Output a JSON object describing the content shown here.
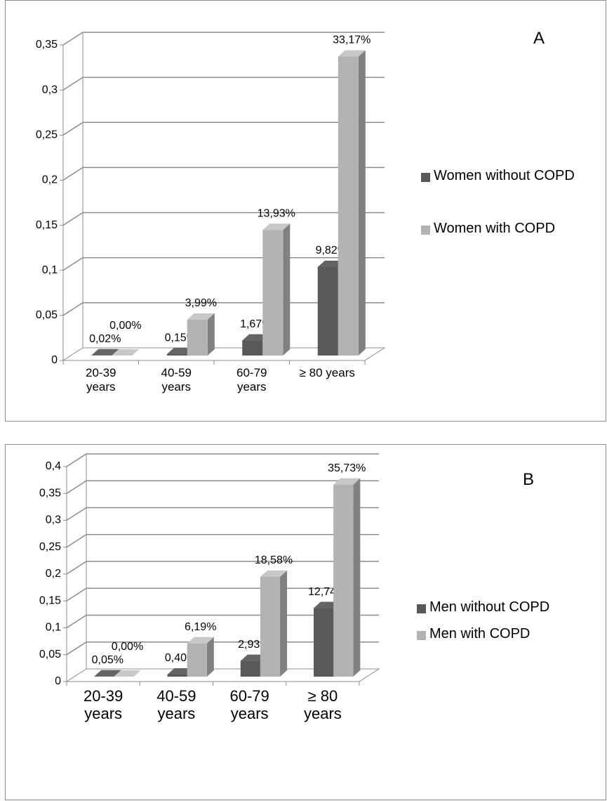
{
  "chart_data": [
    {
      "type": "bar3d",
      "annotation": "A",
      "legend_position": "right",
      "categories": [
        "20-39 years",
        "40-59 years",
        "60-79 years",
        "≥ 80 years"
      ],
      "series": [
        {
          "name": "Women without COPD",
          "color": "#595959",
          "values": [
            0.0002,
            0.0015,
            0.0167,
            0.0982
          ],
          "value_labels": [
            "0,02%",
            "0,15%",
            "1,67%",
            "9,82%"
          ]
        },
        {
          "name": "Women with COPD",
          "color": "#b3b3b3",
          "values": [
            0.0,
            0.0399,
            0.1393,
            0.3317
          ],
          "value_labels": [
            "0,00%",
            "3,99%",
            "13,93%",
            "33,17%"
          ]
        }
      ],
      "ylim": [
        0,
        0.35
      ],
      "yticks": [
        0,
        {
          "value": 0.05,
          "label": "0,05"
        },
        {
          "value": 0.1,
          "label": "0,1"
        },
        {
          "value": 0.15,
          "label": "0,15"
        },
        {
          "value": 0.2,
          "label": "0,2"
        },
        {
          "value": 0.25,
          "label": "0,25"
        },
        {
          "value": 0.3,
          "label": "0,3"
        },
        {
          "value": 0.35,
          "label": "0,35"
        }
      ],
      "grid": true
    },
    {
      "type": "bar3d",
      "annotation": "B",
      "legend_position": "right",
      "categories": [
        "20-39 years",
        "40-59 years",
        "60-79 years",
        "≥ 80 years"
      ],
      "series": [
        {
          "name": "Men without COPD",
          "color": "#595959",
          "values": [
            0.0005,
            0.004,
            0.0293,
            0.1274
          ],
          "value_labels": [
            "0,05%",
            "0,40%",
            "2,93%",
            "12,74%"
          ]
        },
        {
          "name": "Men with COPD",
          "color": "#b3b3b3",
          "values": [
            0.0,
            0.0619,
            0.1858,
            0.3573
          ],
          "value_labels": [
            "0,00%",
            "6,19%",
            "18,58%",
            "35,73%"
          ]
        }
      ],
      "ylim": [
        0,
        0.4
      ],
      "yticks": [
        0,
        {
          "value": 0.05,
          "label": "0,05"
        },
        {
          "value": 0.1,
          "label": "0,1"
        },
        {
          "value": 0.15,
          "label": "0,15"
        },
        {
          "value": 0.2,
          "label": "0,2"
        },
        {
          "value": 0.25,
          "label": "0,25"
        },
        {
          "value": 0.3,
          "label": "0,3"
        },
        {
          "value": 0.35,
          "label": "0,35"
        },
        {
          "value": 0.4,
          "label": "0,4"
        }
      ],
      "grid": true
    }
  ]
}
